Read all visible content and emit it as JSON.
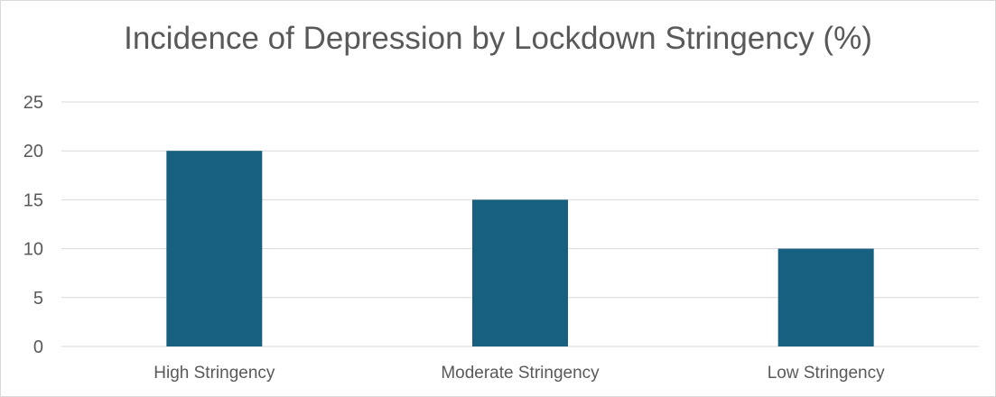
{
  "chart_data": {
    "type": "bar",
    "title": "Incidence of Depression by Lockdown Stringency (%)",
    "categories": [
      "High Stringency",
      "Moderate Stringency",
      "Low Stringency"
    ],
    "values": [
      20,
      15,
      10
    ],
    "xlabel": "",
    "ylabel": "",
    "ylim": [
      0,
      25
    ],
    "yticks": [
      0,
      5,
      10,
      15,
      20,
      25
    ],
    "grid": true,
    "legend": "none",
    "bar_color": "#17607f",
    "gridline_color": "#d9d9d9"
  }
}
